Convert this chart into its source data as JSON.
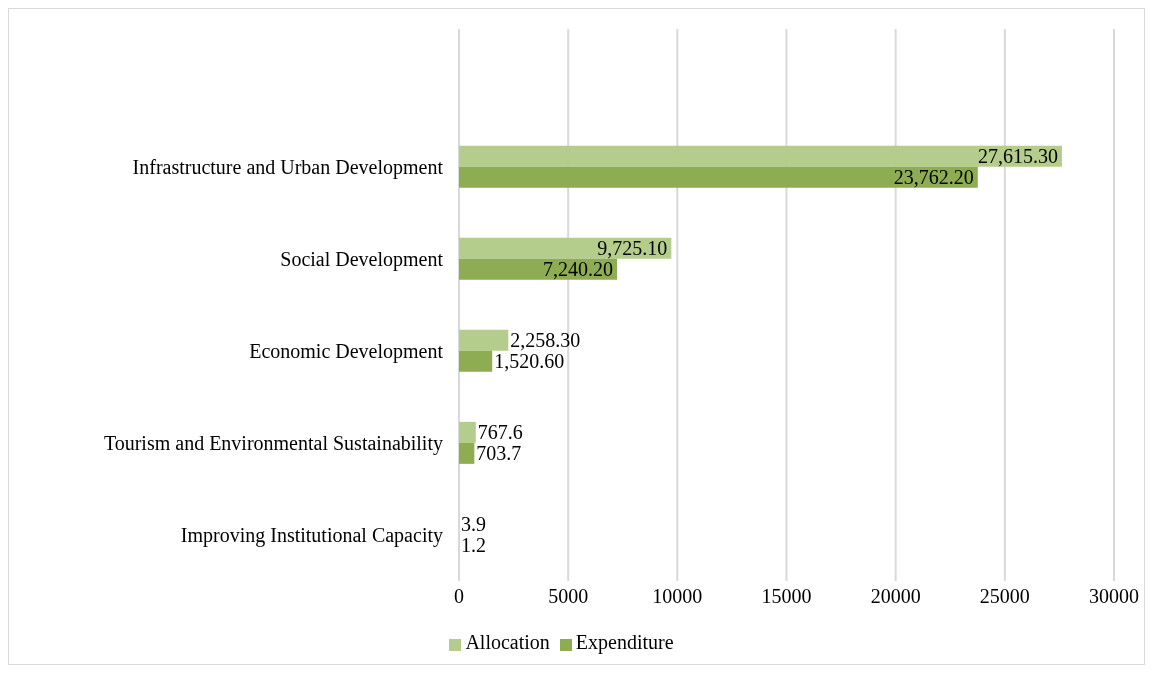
{
  "chart_data": {
    "type": "bar",
    "orientation": "horizontal",
    "categories": [
      null,
      "Infrastructure and Urban Development",
      "Social Development",
      "Economic Development",
      "Tourism and Environmental Sustainability",
      "Improving Institutional Capacity"
    ],
    "series": [
      {
        "name": "Allocation",
        "color": "#b4cc8c",
        "values": [
          null,
          27615.3,
          9725.1,
          2258.3,
          767.6,
          3.9
        ],
        "value_labels": [
          null,
          "27,615.30",
          "9,725.10",
          "2,258.30",
          "767.6",
          "3.9"
        ]
      },
      {
        "name": "Expenditure",
        "color": "#8ead52",
        "values": [
          null,
          23762.2,
          7240.2,
          1520.6,
          703.7,
          1.2
        ],
        "value_labels": [
          null,
          "23,762.20",
          "7,240.20",
          "1,520.60",
          "703.7",
          "1.2"
        ]
      }
    ],
    "xlim": [
      0,
      30000
    ],
    "xticks": [
      0,
      5000,
      10000,
      15000,
      20000,
      25000,
      30000
    ],
    "grid": "x",
    "legend": "bottom"
  }
}
